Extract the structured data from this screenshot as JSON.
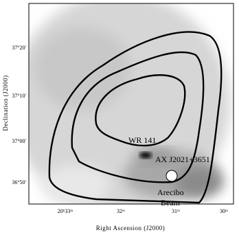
{
  "figure": {
    "y_axis": {
      "label": "Declination (J2000)",
      "ticks": [
        "37°20'",
        "37°10'",
        "37°00'",
        "36°50'"
      ]
    },
    "x_axis": {
      "label": "Right Ascension (J2000)",
      "ticks": [
        "20ʰ33ᵐ",
        "32ᵐ",
        "31ᵐ",
        "30ᵐ"
      ]
    },
    "annotations": [
      "WR 141",
      "AX J2021+3651",
      "Arecibo",
      "Beam"
    ]
  }
}
